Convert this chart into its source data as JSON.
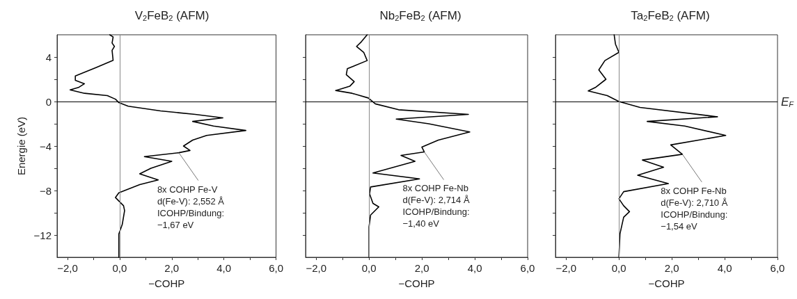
{
  "chart_data": [
    {
      "type": "line",
      "title": "V$_{2}$FeB$_{2}$ (AFM)",
      "xlabel": "−COHP",
      "ylabel": "Energie (eV)",
      "series": [
        {
          "color": "#000000",
          "x": [
            -0.38,
            -0.25,
            -0.29,
            -0.2,
            -0.29,
            -0.25,
            -0.91,
            -1.7,
            -1.7,
            -1.35,
            -1.58,
            -1.9,
            -1.35,
            -0.47,
            -0.16,
            -0.03,
            0.33,
            1.57,
            2.9,
            3.96,
            2.8,
            3.6,
            4.84,
            3.34,
            2.8,
            2.45,
            2.7,
            2.27,
            0.95,
            2.0,
            1.2,
            0.77,
            1.48,
            0.77,
            -0.03,
            -0.16,
            0.15,
            0.19,
            0.1,
            -0.03,
            -0.03
          ],
          "values": [
            6.0,
            5.8,
            5.26,
            4.95,
            4.6,
            3.7,
            3.05,
            2.3,
            1.9,
            1.6,
            1.26,
            1.05,
            0.74,
            0.53,
            0.21,
            -0.1,
            -0.42,
            -0.84,
            -1.16,
            -1.47,
            -1.79,
            -2.2,
            -2.6,
            -3.05,
            -3.47,
            -4.0,
            -4.4,
            -4.6,
            -4.95,
            -5.37,
            -6.0,
            -6.5,
            -7.05,
            -7.47,
            -8.2,
            -8.63,
            -9.37,
            -9.8,
            -11.05,
            -11.9,
            -14.0
          ]
        }
      ],
      "annotations": [
        {
          "text": "8x COHP Fe-V\nd(Fe-V): 2,552 Å\nICOHP/Bindung:\n−1,67 eV",
          "x": 2.27,
          "y": -4.6
        }
      ],
      "ref_lines": [
        {
          "axis": "y",
          "value": 0,
          "color": "#000000"
        },
        {
          "axis": "x",
          "value": 0,
          "color": "#888888"
        }
      ],
      "xlim": [
        -2.4,
        6
      ],
      "ylim": [
        -14,
        6
      ],
      "xticks": [
        {
          "value": -2,
          "label": "−2,0"
        },
        {
          "value": -1,
          "label": null
        },
        {
          "value": 0,
          "label": "0,0"
        },
        {
          "value": 1,
          "label": null
        },
        {
          "value": 2,
          "label": "2,0"
        },
        {
          "value": 3,
          "label": null
        },
        {
          "value": 4,
          "label": "4,0"
        },
        {
          "value": 5,
          "label": null
        },
        {
          "value": 6,
          "label": "6,0"
        }
      ],
      "yticks": [
        {
          "value": -12,
          "label": "−12"
        },
        {
          "value": -10,
          "label": null
        },
        {
          "value": -8,
          "label": "−8"
        },
        {
          "value": -6,
          "label": null
        },
        {
          "value": -4,
          "label": "−4"
        },
        {
          "value": -2,
          "label": null
        },
        0,
        {
          "value": 2,
          "label": null
        },
        4
      ],
      "grid": false,
      "marker": "none",
      "line_style": "solid"
    },
    {
      "type": "line",
      "title": "Nb$_{2}$FeB$_{2}$ (AFM)",
      "xlabel": "−COHP",
      "series": [
        {
          "color": "#000000",
          "x": [
            -0.07,
            -0.29,
            -0.47,
            -0.2,
            -0.07,
            -0.82,
            -0.86,
            -0.56,
            -0.73,
            -1.26,
            -0.64,
            -0.03,
            0.24,
            1.12,
            3.76,
            1.03,
            2.26,
            3.81,
            2.62,
            2.0,
            2.09,
            1.21,
            1.74,
            0.15,
            1.91,
            0.06,
            0.02,
            0.15,
            0.37,
            0.06,
            0,
            0
          ],
          "values": [
            6.0,
            5.37,
            4.95,
            4.42,
            3.68,
            2.95,
            2.42,
            1.79,
            1.37,
            0.99,
            0.74,
            0.32,
            -0.21,
            -0.74,
            -1.16,
            -1.58,
            -2.0,
            -2.74,
            -3.47,
            -4.1,
            -4.53,
            -4.84,
            -5.37,
            -6.42,
            -6.95,
            -7.68,
            -8.3,
            -9.16,
            -9.47,
            -10.2,
            -11.26,
            -14.0
          ]
        }
      ],
      "annotations": [
        {
          "text": "8x COHP Fe-Nb\nd(Fe-V): 2,714 Å\nICOHP/Bindung:\n−1,40 eV",
          "x": 2.09,
          "y": -4.53
        }
      ],
      "ref_lines": [
        {
          "axis": "y",
          "value": 0,
          "color": "#000000"
        },
        {
          "axis": "x",
          "value": 0,
          "color": "#888888"
        }
      ],
      "xlim": [
        -2.4,
        6
      ],
      "ylim": [
        -14,
        6
      ],
      "xticks": [
        {
          "value": -2,
          "label": "−2,0"
        },
        {
          "value": -1,
          "label": null
        },
        {
          "value": 0,
          "label": "0,0"
        },
        {
          "value": 1,
          "label": null
        },
        {
          "value": 2,
          "label": "2,0"
        },
        {
          "value": 3,
          "label": null
        },
        {
          "value": 4,
          "label": "4,0"
        },
        {
          "value": 5,
          "label": null
        },
        {
          "value": 6,
          "label": "6,0"
        }
      ],
      "yticks": [
        {
          "value": -12,
          "label": null
        },
        {
          "value": -10,
          "label": null
        },
        {
          "value": -8,
          "label": null
        },
        {
          "value": -6,
          "label": null
        },
        {
          "value": -4,
          "label": null
        },
        {
          "value": -2,
          "label": null
        },
        {
          "value": 0,
          "label": null
        },
        {
          "value": 2,
          "label": null
        },
        {
          "value": 4,
          "label": null
        }
      ],
      "tick_labels": "x",
      "grid": false,
      "marker": "none",
      "line_style": "solid"
    },
    {
      "type": "line",
      "title": "Ta$_{2}$FeB$_{2}$ (AFM)",
      "xlabel": "−COHP",
      "series": [
        {
          "color": "#000000",
          "x": [
            -0.18,
            -0.13,
            0,
            -0.53,
            -0.76,
            -0.49,
            -0.89,
            -1.16,
            -0.44,
            0,
            0.8,
            3.73,
            1.07,
            2.49,
            4.04,
            1.96,
            2.4,
            0.89,
            1.69,
            0.71,
            1.87,
            0.18,
            0,
            0.18,
            0.4,
            0.18,
            0.04,
            0
          ],
          "values": [
            6.0,
            5.16,
            4.42,
            3.68,
            2.84,
            2.0,
            1.26,
            0.95,
            0.53,
            0,
            -0.53,
            -1.37,
            -1.79,
            -2.2,
            -3.05,
            -3.9,
            -4.74,
            -5.26,
            -5.9,
            -6.63,
            -7.37,
            -8.1,
            -8.74,
            -9.37,
            -9.9,
            -10.4,
            -11.9,
            -14.0
          ]
        }
      ],
      "annotations": [
        {
          "text": "8x COHP Fe-Nb\nd(Fe-V): 2,710 Å\nICOHP/Bindung:\n−1,54 eV",
          "x": 2.4,
          "y": -4.74
        }
      ],
      "ref_lines": [
        {
          "axis": "y",
          "value": 0,
          "color": "#000000",
          "label": "E$_{F}$"
        },
        {
          "axis": "x",
          "value": 0,
          "color": "#888888"
        }
      ],
      "xlim": [
        -2.4,
        6
      ],
      "ylim": [
        -14,
        6
      ],
      "xticks": [
        {
          "value": -2,
          "label": "−2,0"
        },
        {
          "value": -1,
          "label": null
        },
        {
          "value": 0,
          "label": "0,0"
        },
        {
          "value": 1,
          "label": null
        },
        {
          "value": 2,
          "label": "2,0"
        },
        {
          "value": 3,
          "label": null
        },
        {
          "value": 4,
          "label": "4,0"
        },
        {
          "value": 5,
          "label": null
        },
        {
          "value": 6,
          "label": "6,0"
        }
      ],
      "yticks": [
        {
          "value": -12,
          "label": null
        },
        {
          "value": -10,
          "label": null
        },
        {
          "value": -8,
          "label": null
        },
        {
          "value": -6,
          "label": null
        },
        {
          "value": -4,
          "label": null
        },
        {
          "value": -2,
          "label": null
        },
        {
          "value": 0,
          "label": null
        },
        {
          "value": 2,
          "label": null
        },
        {
          "value": 4,
          "label": null
        }
      ],
      "tick_labels": "x",
      "grid": false,
      "marker": "none",
      "line_style": "solid"
    }
  ]
}
